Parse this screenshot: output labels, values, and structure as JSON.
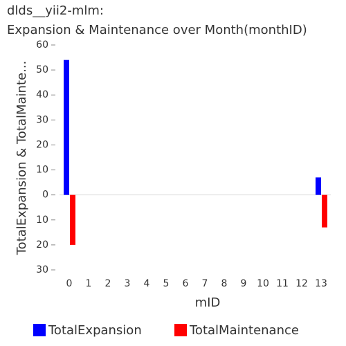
{
  "chart_data": {
    "type": "bar",
    "title": "dlds__yii2-mlm:",
    "subtitle": "Expansion & Maintenance over Month(monthID)",
    "x_label": "mID",
    "y_label": "TotalExpansion & TotalMainte...",
    "categories": [
      "0",
      "1",
      "2",
      "3",
      "4",
      "5",
      "6",
      "7",
      "8",
      "9",
      "10",
      "11",
      "12",
      "13"
    ],
    "series": [
      {
        "name": "TotalExpansion",
        "color": "#0000ff",
        "values": [
          54,
          0,
          0,
          0,
          0,
          0,
          0,
          0,
          0,
          0,
          0,
          0,
          0,
          7
        ]
      },
      {
        "name": "TotalMaintenance",
        "color": "#ff0000",
        "values": [
          -20,
          0,
          0,
          0,
          0,
          0,
          0,
          0,
          0,
          0,
          0,
          0,
          0,
          -13
        ]
      }
    ],
    "ylim": [
      -30,
      60
    ],
    "yticks": [
      {
        "value": -30,
        "label": "30"
      },
      {
        "value": -20,
        "label": "20"
      },
      {
        "value": -10,
        "label": "10"
      },
      0,
      10,
      20,
      30,
      40,
      50,
      60
    ]
  }
}
